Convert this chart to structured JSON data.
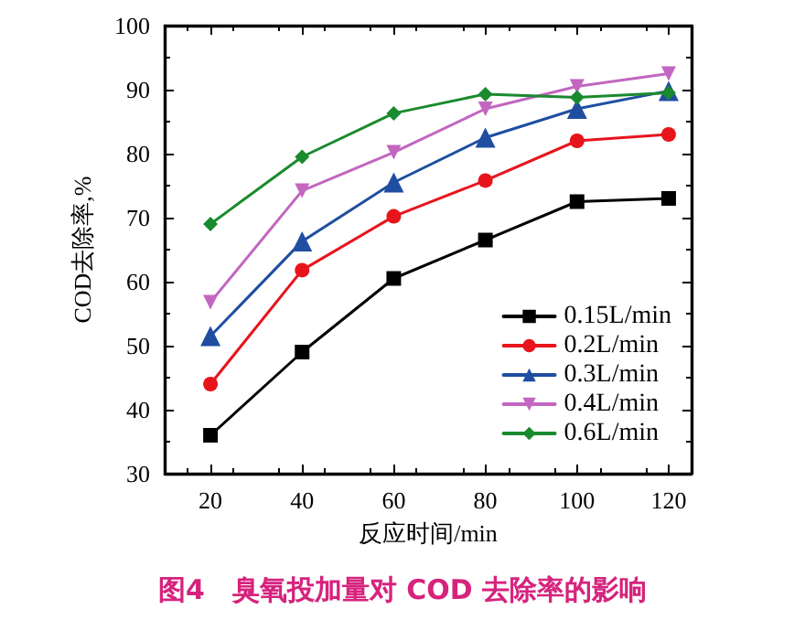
{
  "chart_data": {
    "type": "line",
    "title": "图4　臭氧投加量对 COD 去除率的影响",
    "xlabel": "反应时间/min",
    "ylabel": "COD去除率,%",
    "x": [
      20,
      40,
      60,
      80,
      100,
      120
    ],
    "xlim": [
      10,
      125
    ],
    "xticks": [
      20,
      40,
      60,
      80,
      100,
      120
    ],
    "ylim": [
      30,
      100
    ],
    "yticks": [
      30,
      40,
      50,
      60,
      70,
      80,
      90,
      100
    ],
    "grid": false,
    "legend": "bottom right",
    "line_style": "solid",
    "series": [
      {
        "name": "0.15L/min",
        "color": "#000000",
        "marker": "square",
        "values": [
          36,
          49,
          60.5,
          66.5,
          72.5,
          73
        ]
      },
      {
        "name": "0.2L/min",
        "color": "#e8141c",
        "marker": "circle",
        "values": [
          44,
          61.8,
          70.2,
          75.8,
          82,
          83
        ]
      },
      {
        "name": "0.3L/min",
        "color": "#1f4ea1",
        "marker": "triangle",
        "values": [
          51.5,
          66.3,
          75.5,
          82.5,
          87,
          89.8
        ]
      },
      {
        "name": "0.4L/min",
        "color": "#c266c0",
        "marker": "triangle-down",
        "values": [
          56.8,
          74.2,
          80.2,
          87,
          90.5,
          92.5
        ]
      },
      {
        "name": "0.6L/min",
        "color": "#1a8a2e",
        "marker": "diamond",
        "values": [
          69,
          79.5,
          86.3,
          89.3,
          88.8,
          89.5
        ]
      }
    ]
  }
}
